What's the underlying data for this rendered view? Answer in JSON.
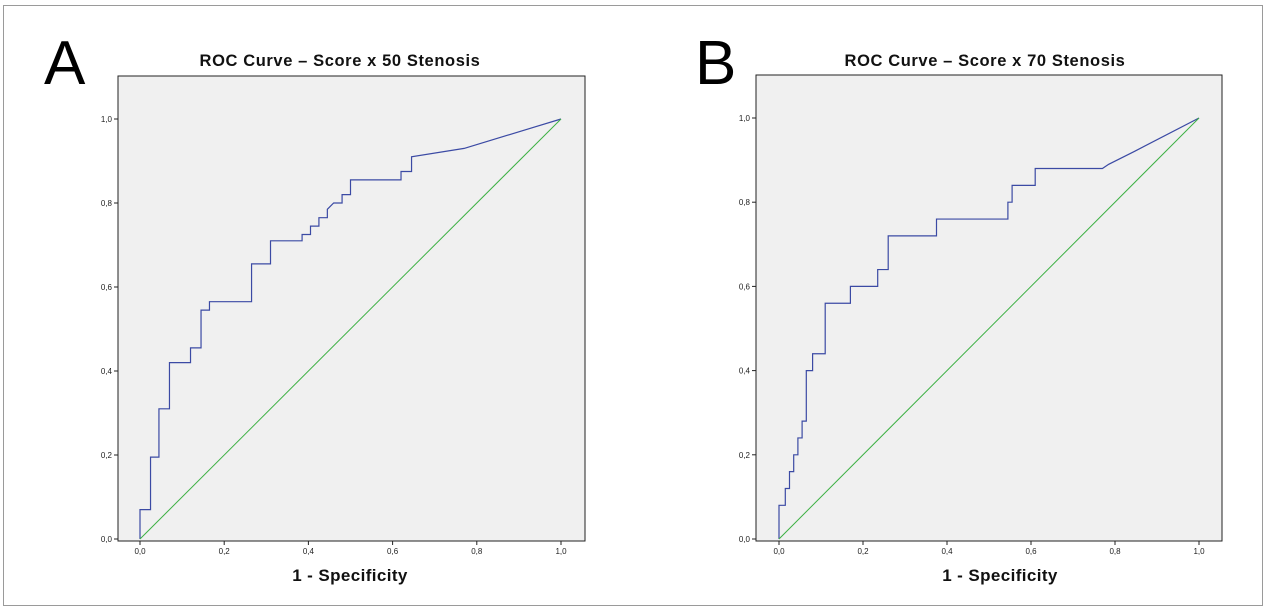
{
  "chart_data": [
    {
      "panel": "A",
      "type": "line",
      "title": "ROC Curve – Score x 50 Stenosis",
      "xlabel": "1 - Specificity",
      "ylabel": "",
      "xlim": [
        0,
        1
      ],
      "ylim": [
        0,
        1
      ],
      "x_ticks": [
        "0,0",
        "0,2",
        "0,4",
        "0,6",
        "0,8",
        "1,0"
      ],
      "y_ticks": [
        "0,0",
        "0,2",
        "0,4",
        "0,6",
        "0,8",
        "1,0"
      ],
      "grid": false,
      "legend": "none",
      "series": [
        {
          "color": "#3b4aa4",
          "x": [
            0,
            0,
            0.025,
            0.025,
            0.045,
            0.045,
            0.07,
            0.07,
            0.12,
            0.12,
            0.145,
            0.145,
            0.165,
            0.165,
            0.265,
            0.265,
            0.31,
            0.31,
            0.385,
            0.385,
            0.405,
            0.405,
            0.425,
            0.425,
            0.445,
            0.445,
            0.46,
            0.48,
            0.48,
            0.5,
            0.5,
            0.62,
            0.62,
            0.645,
            0.645,
            0.77,
            1.0
          ],
          "y": [
            0,
            0.07,
            0.07,
            0.195,
            0.195,
            0.31,
            0.31,
            0.42,
            0.42,
            0.455,
            0.455,
            0.545,
            0.545,
            0.565,
            0.565,
            0.655,
            0.655,
            0.71,
            0.71,
            0.725,
            0.725,
            0.745,
            0.745,
            0.765,
            0.765,
            0.785,
            0.8,
            0.8,
            0.82,
            0.82,
            0.855,
            0.855,
            0.875,
            0.875,
            0.91,
            0.93,
            1.0
          ]
        },
        {
          "color": "#3cb043",
          "x": [
            0,
            1
          ],
          "y": [
            0,
            1
          ]
        }
      ]
    },
    {
      "panel": "B",
      "type": "line",
      "title": "ROC Curve – Score x 70 Stenosis",
      "xlabel": "1 - Specificity",
      "ylabel": "",
      "xlim": [
        0,
        1
      ],
      "ylim": [
        0,
        1
      ],
      "x_ticks": [
        "0,0",
        "0,2",
        "0,4",
        "0,6",
        "0,8",
        "1,0"
      ],
      "y_ticks": [
        "0,0",
        "0,2",
        "0,4",
        "0,6",
        "0,8",
        "1,0"
      ],
      "grid": false,
      "legend": "none",
      "series": [
        {
          "color": "#3b4aa4",
          "x": [
            0,
            0,
            0.015,
            0.015,
            0.025,
            0.025,
            0.035,
            0.035,
            0.045,
            0.045,
            0.055,
            0.055,
            0.065,
            0.065,
            0.08,
            0.08,
            0.11,
            0.11,
            0.17,
            0.17,
            0.235,
            0.235,
            0.26,
            0.26,
            0.375,
            0.375,
            0.545,
            0.545,
            0.555,
            0.555,
            0.61,
            0.61,
            0.77,
            0.77,
            0.785,
            0.845,
            1.0
          ],
          "y": [
            0,
            0.08,
            0.08,
            0.12,
            0.12,
            0.16,
            0.16,
            0.2,
            0.2,
            0.24,
            0.24,
            0.28,
            0.28,
            0.4,
            0.4,
            0.44,
            0.44,
            0.56,
            0.56,
            0.6,
            0.6,
            0.64,
            0.64,
            0.72,
            0.72,
            0.76,
            0.76,
            0.8,
            0.8,
            0.84,
            0.84,
            0.88,
            0.88,
            0.88,
            0.89,
            0.92,
            1.0
          ]
        },
        {
          "color": "#3cb043",
          "x": [
            0,
            1
          ],
          "y": [
            0,
            1
          ]
        }
      ]
    }
  ]
}
